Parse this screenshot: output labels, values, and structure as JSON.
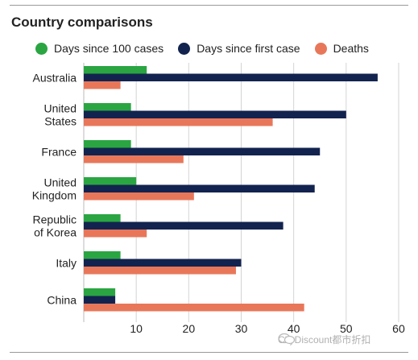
{
  "chart_data": {
    "type": "bar",
    "orientation": "horizontal",
    "title": "Country comparisons",
    "categories": [
      "Australia",
      "United\nStates",
      "France",
      "United\nKingdom",
      "Republic\nof Korea",
      "Italy",
      "China"
    ],
    "series": [
      {
        "name": "Days since 100 cases",
        "color": "#2aa542",
        "values": [
          12,
          9,
          9,
          10,
          7,
          7,
          6
        ]
      },
      {
        "name": "Days since first case",
        "color": "#13234f",
        "values": [
          56,
          50,
          45,
          44,
          38,
          30,
          6
        ]
      },
      {
        "name": "Deaths",
        "color": "#e8775a",
        "values": [
          7,
          36,
          19,
          21,
          12,
          29,
          42
        ]
      }
    ],
    "xticks": [
      10,
      20,
      30,
      40,
      50,
      60
    ],
    "xlim": [
      0,
      62
    ],
    "legend_position": "top",
    "grid": true
  },
  "watermark": {
    "text": "CityDiscount都市折扣"
  }
}
